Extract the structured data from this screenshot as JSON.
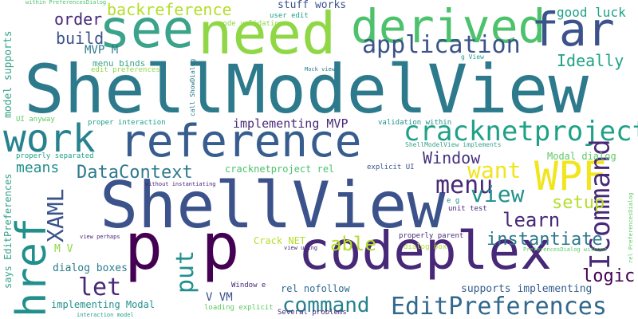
{
  "words": {
    "shellmodelview": "ShellModelView",
    "shellview": "ShellView",
    "reference": "reference",
    "codeplex": "codeplex",
    "p_p": "p p",
    "see": "see",
    "need": "need",
    "derived": "derived",
    "far": "far",
    "application": "application",
    "work": "work",
    "cracknetproject": "cracknetproject",
    "wpf": "WPF",
    "icommand": "ICommand",
    "href": "href",
    "xaml": "XAML",
    "edit_preferences": "EditPreferences",
    "command": "command",
    "put": "put",
    "let": "let",
    "menu": "menu",
    "want": "want",
    "view": "view",
    "learn": "learn",
    "setup": "setup",
    "instantiate": "instantiate",
    "able": "able",
    "logic": "logic",
    "datacontext": "DataContext",
    "window": "Window",
    "means": "means",
    "ideally": "Ideally",
    "good_luck": "good luck",
    "order": "order",
    "build": "build",
    "backreference": "backreference",
    "stuff_works": "stuff works",
    "implementing_mvp": "implementing MVP",
    "modal_dialog": "Modal dialog",
    "mvp_m": "MVP M",
    "mv": "M V",
    "v_vm": "V VM",
    "dialog_boxes": "dialog boxes",
    "implementing_modal": "implementing Modal",
    "supports_implementing": "supports implementing",
    "model_supports": "model supports",
    "says_editpreferences": "says EditPreferences",
    "rel_nofollow": "rel nofollow",
    "crack_net": "Crack NET",
    "cracknetproject_rel": "cracknetproject rel",
    "menu_binds": "menu binds",
    "edit_preferences_lc": "edit preferences",
    "user_edit": "user edit",
    "code_validation": "code validation",
    "within_preferencesdialog": "within PreferencesDialog",
    "mock_view": "Mock view",
    "call_showdialog": "call ShowDialog",
    "g_view": "g View",
    "proper_interaction": "proper interaction",
    "validation_within": "validation within",
    "shellmodelview_implements": "ShellModelView implements",
    "ui_anyway": "UI anyway",
    "properly_separated": "properly separated",
    "without_instantiating": "without instantiating",
    "explicit_ui": "explicit UI",
    "e_g": "e g",
    "unit_test": "unit test",
    "view_perhaps": "view perhaps",
    "view_using": "view using",
    "properly_parent": "properly parent",
    "dialog_box": "dialog box",
    "preferencesdialog_without": "PreferencesDialog without",
    "rel_preferencesdialog": "rel PreferencesDialog",
    "interaction_model": "interaction model",
    "loading_explicit": "loading explicit",
    "several_problems": "Several problems",
    "window_e": "Window e"
  }
}
